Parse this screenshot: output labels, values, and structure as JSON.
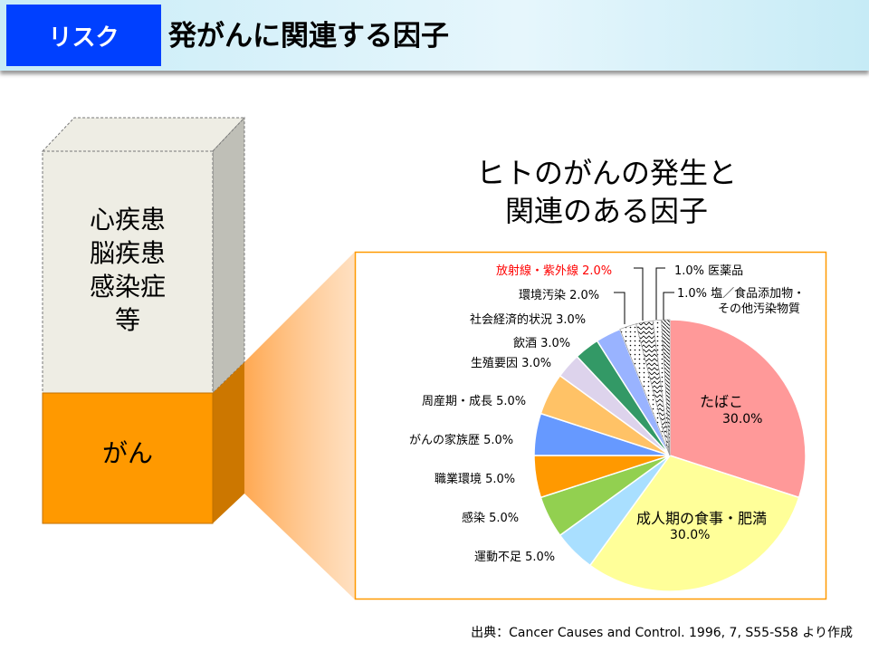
{
  "header": {
    "tag": "リスク",
    "title": "発がんに関連する因子"
  },
  "box": {
    "upper": [
      "心疾患",
      "脳疾患",
      "感染症",
      "等"
    ],
    "lower": "がん",
    "colors": {
      "front": "#EEEDE4",
      "side": "#BFBFB7",
      "orange": "#FF9900",
      "orange_dark": "#CC7700"
    }
  },
  "chart_data": {
    "type": "pie",
    "title": "ヒトのがんの発生と関連のある因子",
    "title_lines": [
      "ヒトのがんの発生と",
      "関連のある因子"
    ],
    "start": "12 o'clock, clockwise",
    "slices": [
      {
        "name": "たばこ",
        "value": 30.0,
        "label": "30.0%",
        "color": "#FF9999"
      },
      {
        "name": "成人期の食事・肥満",
        "value": 30.0,
        "label": "30.0%",
        "color": "#FFFF99"
      },
      {
        "name": "運動不足",
        "value": 5.0,
        "label": "運動不足 5.0%",
        "color": "#A9DFFF"
      },
      {
        "name": "感染",
        "value": 5.0,
        "label": "感染 5.0%",
        "color": "#92D050"
      },
      {
        "name": "職業環境",
        "value": 5.0,
        "label": "職業環境 5.0%",
        "color": "#FF9900"
      },
      {
        "name": "がんの家族歴",
        "value": 5.0,
        "label": "がんの家族歴 5.0%",
        "color": "#6699FF"
      },
      {
        "name": "周産期・成長",
        "value": 5.0,
        "label": "周産期・成長 5.0%",
        "color": "#FFC266"
      },
      {
        "name": "生殖要因",
        "value": 3.0,
        "label": "生殖要因 3.0%",
        "color": "#DDD3EC"
      },
      {
        "name": "飲酒",
        "value": 3.0,
        "label": "飲酒 3.0%",
        "color": "#339966"
      },
      {
        "name": "社会経済的状況",
        "value": 3.0,
        "label": "社会経済的状況 3.0%",
        "color": "#99B3FF"
      },
      {
        "name": "環境汚染",
        "value": 2.0,
        "label": "環境汚染 2.0%",
        "color": "pattern-dots"
      },
      {
        "name": "放射線・紫外線",
        "value": 2.0,
        "label": "放射線・紫外線 2.0%",
        "color": "pattern-zigzag",
        "label_color": "#FF0000"
      },
      {
        "name": "医薬品",
        "value": 1.0,
        "label": "1.0% 医薬品",
        "color": "pattern-dots"
      },
      {
        "name": "塩／食品添加物・その他汚染物質",
        "value": 1.0,
        "label": "1.0% 塩／食品添加物・",
        "label2": "その他汚染物質",
        "color": "pattern-diag"
      }
    ]
  },
  "source": "出典：Cancer Causes and Control. 1996, 7, S55-S58 より作成"
}
